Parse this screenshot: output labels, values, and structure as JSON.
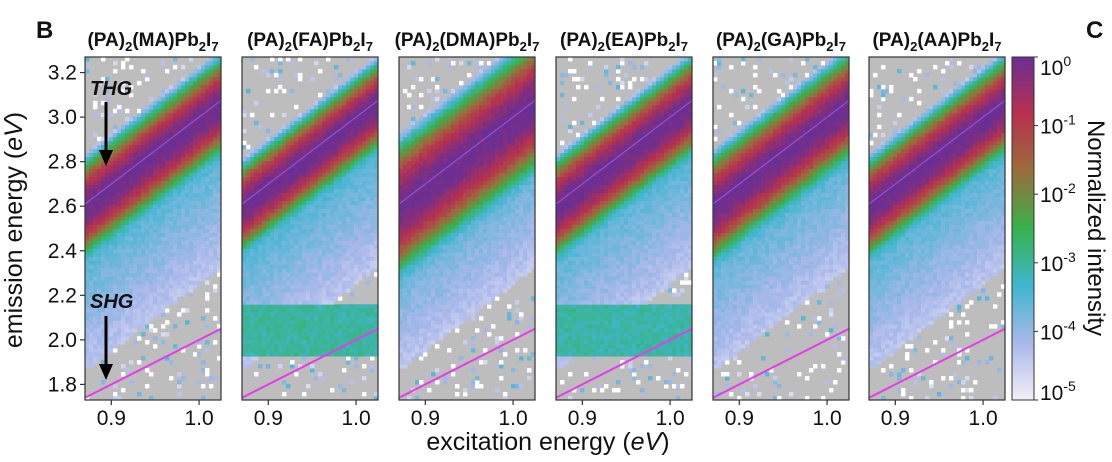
{
  "figure": {
    "panel_label_b": "B",
    "panel_label_c": "C"
  },
  "chart_data": {
    "type": "heatmap",
    "xlabel_prefix": "excitation energy (",
    "xlabel_unit": "eV",
    "xlabel_suffix": ")",
    "ylabel_prefix": "emission energy (",
    "ylabel_unit": "eV",
    "ylabel_suffix": ")",
    "xlim": [
      0.87,
      1.025
    ],
    "ylim": [
      1.73,
      3.27
    ],
    "xticks": [
      0.9,
      1.0
    ],
    "xtick_labels": [
      "0.9",
      "1.0"
    ],
    "yticks": [
      1.8,
      2.0,
      2.2,
      2.4,
      2.6,
      2.8,
      3.0,
      3.2
    ],
    "ytick_labels": [
      "1.8",
      "2.0",
      "2.2",
      "2.4",
      "2.6",
      "2.8",
      "3.0",
      "3.2"
    ],
    "annotations": {
      "thg": "THG",
      "shg": "SHG"
    },
    "colorbar": {
      "label": "Normalized intensity",
      "scale": "log",
      "range": [
        1e-05,
        1
      ],
      "ticks": [
        {
          "base": "10",
          "exp": "0",
          "value": 1
        },
        {
          "base": "10",
          "exp": "-1",
          "value": 0.1
        },
        {
          "base": "10",
          "exp": "-2",
          "value": 0.01
        },
        {
          "base": "10",
          "exp": "-3",
          "value": 0.001
        },
        {
          "base": "10",
          "exp": "-4",
          "value": 0.0001
        },
        {
          "base": "10",
          "exp": "-5",
          "value": 1e-05
        }
      ],
      "colors": [
        "#f3eef7",
        "#a9b8ea",
        "#3fb6cf",
        "#36b24a",
        "#9a6e3c",
        "#b8304e",
        "#6a2f93"
      ]
    },
    "reference_lines": [
      {
        "name": "SHG line",
        "relation": "emission = 2 x excitation",
        "color": "#e53be8"
      },
      {
        "name": "THG line",
        "relation": "emission = 3 x excitation",
        "color": "#9c59e6"
      }
    ],
    "panels": [
      {
        "title_parts": [
          "(PA)",
          "2",
          "(MA)Pb",
          "2",
          "I",
          "7"
        ],
        "thg_peak_width": 0.055,
        "shg_level": 0.0
      },
      {
        "title_parts": [
          "(PA)",
          "2",
          "(FA)Pb",
          "2",
          "I",
          "7"
        ],
        "thg_peak_width": 0.05,
        "shg_level": 0.55
      },
      {
        "title_parts": [
          "(PA)",
          "2",
          "(DMA)Pb",
          "2",
          "I",
          "7"
        ],
        "thg_peak_width": 0.075,
        "shg_level": 0.0
      },
      {
        "title_parts": [
          "(PA)",
          "2",
          "(EA)Pb",
          "2",
          "I",
          "7"
        ],
        "thg_peak_width": 0.055,
        "shg_level": 0.5
      },
      {
        "title_parts": [
          "(PA)",
          "2",
          "(GA)Pb",
          "2",
          "I",
          "7"
        ],
        "thg_peak_width": 0.06,
        "shg_level": 0.0
      },
      {
        "title_parts": [
          "(PA)",
          "2",
          "(AA)Pb",
          "2",
          "I",
          "7"
        ],
        "thg_peak_width": 0.055,
        "shg_level": 0.0
      }
    ]
  }
}
